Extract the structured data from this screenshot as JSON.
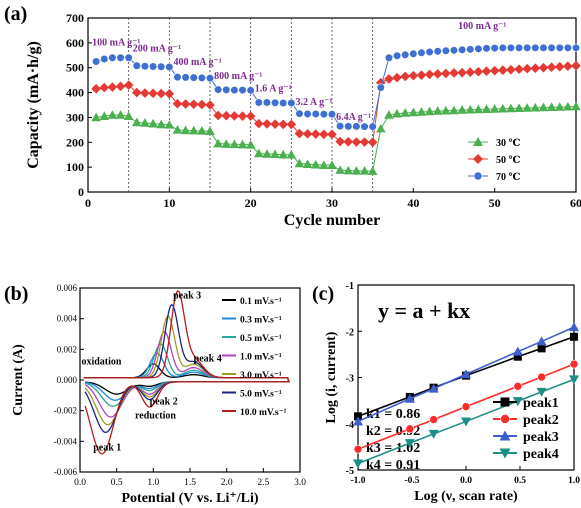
{
  "chart_data": [
    {
      "type": "scatter",
      "panel_label": "(a)",
      "xlabel": "Cycle number",
      "ylabel": "Capacity (mA·h/g)",
      "xlim": [
        0,
        60
      ],
      "ylim": [
        0,
        700
      ],
      "xticks": [
        "0",
        "10",
        "20",
        "30",
        "40",
        "50",
        "60"
      ],
      "yticks": [
        "0",
        "100",
        "200",
        "300",
        "400",
        "500",
        "600",
        "700"
      ],
      "rate_dividers": [
        5,
        10,
        15,
        20,
        25,
        30,
        35
      ],
      "rate_labels": [
        {
          "text": "100 mA g⁻¹",
          "x": 1,
          "y": 590
        },
        {
          "text": "200 mA g⁻¹",
          "x": 6,
          "y": 565
        },
        {
          "text": "400 mA g⁻¹",
          "x": 11,
          "y": 510
        },
        {
          "text": "800 mA g⁻¹",
          "x": 16,
          "y": 455
        },
        {
          "text": "1.6 A g⁻¹",
          "x": 21,
          "y": 405
        },
        {
          "text": "3.2 A g⁻¹",
          "x": 26,
          "y": 350
        },
        {
          "text": "6.4A g⁻¹",
          "x": 31,
          "y": 290
        },
        {
          "text": "100 mA g⁻¹",
          "x": 46,
          "y": 655
        }
      ],
      "legend_position": "bottom-right",
      "series": [
        {
          "name": "30 ℃",
          "color": "#4caf50",
          "marker": "triangle",
          "y": [
            300,
            305,
            310,
            310,
            305,
            280,
            278,
            275,
            272,
            270,
            250,
            248,
            247,
            246,
            245,
            195,
            193,
            192,
            191,
            190,
            155,
            153,
            152,
            150,
            150,
            115,
            112,
            110,
            108,
            108,
            88,
            86,
            85,
            85,
            84,
            255,
            310,
            315,
            318,
            320,
            322,
            324,
            326,
            327,
            328,
            330,
            331,
            332,
            333,
            334,
            335,
            336,
            337,
            338,
            339,
            340,
            341,
            342,
            343,
            344
          ]
        },
        {
          "name": "50 ℃",
          "color": "#e53935",
          "marker": "diamond",
          "y": [
            415,
            420,
            422,
            425,
            430,
            400,
            398,
            397,
            396,
            395,
            355,
            354,
            353,
            352,
            350,
            308,
            307,
            306,
            305,
            305,
            275,
            274,
            273,
            272,
            272,
            235,
            234,
            233,
            232,
            232,
            203,
            202,
            201,
            201,
            200,
            440,
            455,
            460,
            465,
            468,
            470,
            473,
            475,
            477,
            479,
            480,
            482,
            484,
            486,
            488,
            490,
            492,
            494,
            496,
            498,
            500,
            502,
            504,
            506,
            508
          ]
        },
        {
          "name": "70 ℃",
          "color": "#3f6fd1",
          "marker": "circle",
          "y": [
            525,
            535,
            540,
            540,
            540,
            508,
            506,
            505,
            504,
            503,
            462,
            461,
            460,
            459,
            458,
            412,
            411,
            410,
            410,
            409,
            360,
            360,
            359,
            358,
            358,
            315,
            314,
            314,
            313,
            313,
            265,
            264,
            264,
            263,
            263,
            420,
            540,
            548,
            552,
            556,
            560,
            563,
            566,
            568,
            570,
            572,
            574,
            576,
            578,
            579,
            580,
            580,
            580,
            580,
            580,
            580,
            580,
            580,
            580,
            580
          ]
        }
      ]
    },
    {
      "type": "line",
      "panel_label": "(b)",
      "xlabel": "Potential (V vs. Li⁺/Li)",
      "ylabel": "Current (A)",
      "xlim": [
        0.0,
        3.0
      ],
      "ylim": [
        -0.006,
        0.006
      ],
      "xticks": [
        "0.0",
        "0.5",
        "1.0",
        "1.5",
        "2.0",
        "2.5",
        "3.0"
      ],
      "yticks": [
        "-0.006",
        "-0.004",
        "-0.002",
        "0.000",
        "0.002",
        "0.004",
        "0.006"
      ],
      "annotations": [
        {
          "text": "peak 3",
          "x": 1.27,
          "y": 0.0053
        },
        {
          "text": "peak 4",
          "x": 1.55,
          "y": 0.0012
        },
        {
          "text": "oxidation",
          "x": 0.02,
          "y": 0.001
        },
        {
          "text": "peak 2",
          "x": 0.95,
          "y": -0.0016
        },
        {
          "text": "reduction",
          "x": 0.75,
          "y": -0.0025
        },
        {
          "text": "peak 1",
          "x": 0.18,
          "y": -0.0046
        }
      ],
      "legend_position": "right",
      "series": [
        {
          "name": "0.1 mV.s⁻¹",
          "color": "#000000",
          "anodic_peak": 0.0009,
          "anodic_v": 1.0,
          "cathodic_peak": -0.0008,
          "cathodic_v": 0.5
        },
        {
          "name": "0.3 mV.s⁻¹",
          "color": "#1e88e5",
          "anodic_peak": 0.0016,
          "anodic_v": 1.05,
          "cathodic_peak": -0.0012,
          "cathodic_v": 0.48
        },
        {
          "name": "0.5 mV.s⁻¹",
          "color": "#26a69a",
          "anodic_peak": 0.0022,
          "anodic_v": 1.1,
          "cathodic_peak": -0.0016,
          "cathodic_v": 0.45
        },
        {
          "name": "1.0 mV.s⁻¹",
          "color": "#ab47bc",
          "anodic_peak": 0.003,
          "anodic_v": 1.15,
          "cathodic_peak": -0.0023,
          "cathodic_v": 0.42
        },
        {
          "name": "3.0 mV.s⁻¹",
          "color": "#9e9d24",
          "anodic_peak": 0.004,
          "anodic_v": 1.2,
          "cathodic_peak": -0.0028,
          "cathodic_v": 0.38
        },
        {
          "name": "5.0 mV.s⁻¹",
          "color": "#1a237e",
          "anodic_peak": 0.0047,
          "anodic_v": 1.25,
          "cathodic_peak": -0.0033,
          "cathodic_v": 0.35
        },
        {
          "name": "10.0 mV.s⁻¹",
          "color": "#b71c1c",
          "anodic_peak": 0.0054,
          "anodic_v": 1.33,
          "cathodic_peak": -0.0047,
          "cathodic_v": 0.3
        }
      ]
    },
    {
      "type": "line",
      "panel_label": "(c)",
      "xlabel": "Log (ν, scan rate)",
      "ylabel": "Log (i, current)",
      "xlim": [
        -1.0,
        1.0
      ],
      "ylim": [
        -5,
        -1
      ],
      "xticks": [
        "-1.0",
        "-0.5",
        "0.0",
        "0.5",
        "1.0"
      ],
      "yticks": [
        "-5",
        "-4",
        "-3",
        "-2",
        "-1"
      ],
      "equation": "y = a + kx",
      "k_values": [
        "k1 = 0.86",
        "k2 = 0.92",
        "k3 = 1.02",
        "k4 = 0.91"
      ],
      "legend_position": "bottom-right",
      "x": [
        -1.0,
        -0.52,
        -0.3,
        0.0,
        0.48,
        0.7,
        1.0
      ],
      "series": [
        {
          "name": "peak1",
          "color": "#000000",
          "marker": "square",
          "y": [
            -3.84,
            -3.42,
            -3.22,
            -2.96,
            -2.55,
            -2.37,
            -2.12
          ]
        },
        {
          "name": "peak2",
          "color": "#ff2a2a",
          "marker": "circle",
          "y": [
            -4.55,
            -4.11,
            -3.91,
            -3.63,
            -3.19,
            -2.99,
            -2.71
          ]
        },
        {
          "name": "peak3",
          "color": "#3f5fcf",
          "marker": "triangle",
          "y": [
            -3.95,
            -3.46,
            -3.24,
            -2.93,
            -2.44,
            -2.22,
            -1.91
          ]
        },
        {
          "name": "peak4",
          "color": "#1e8f86",
          "marker": "triangle-down",
          "y": [
            -4.86,
            -4.42,
            -4.22,
            -3.95,
            -3.51,
            -3.31,
            -3.04
          ]
        }
      ]
    }
  ]
}
